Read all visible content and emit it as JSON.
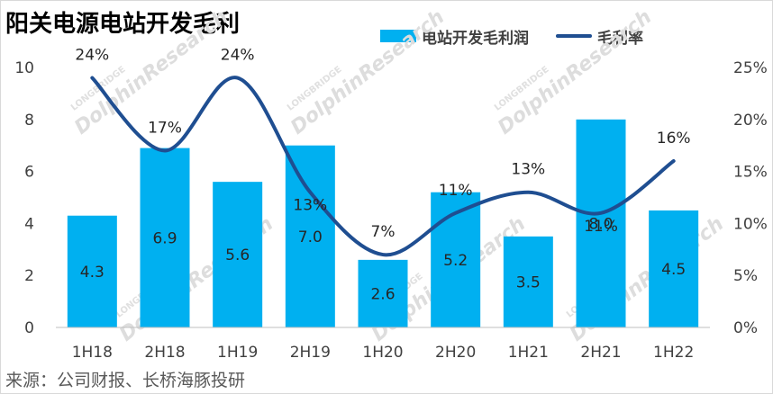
{
  "title": "阳关电源电站开发毛利",
  "source": "来源：公司财报、长桥海豚投研",
  "watermark": "DolphinResearch",
  "watermark_small": "LONGBRIDGE",
  "chart_data": {
    "type": "bar",
    "categories": [
      "1H18",
      "2H18",
      "1H19",
      "2H19",
      "1H20",
      "2H20",
      "1H21",
      "2H21",
      "1H22"
    ],
    "series": [
      {
        "name": "电站开发毛利润",
        "type": "bar",
        "axis": "left",
        "values": [
          4.3,
          6.9,
          5.6,
          7.0,
          2.6,
          5.2,
          3.5,
          8.0,
          4.5
        ],
        "labels": [
          "4.3",
          "6.9",
          "5.6",
          "7.0",
          "2.6",
          "5.2",
          "3.5",
          "8.0",
          "4.5"
        ],
        "color": "#00b0f0"
      },
      {
        "name": "毛利率",
        "type": "line",
        "axis": "right",
        "values": [
          24,
          17,
          24,
          13,
          7,
          11,
          13,
          11,
          16
        ],
        "labels": [
          "24%",
          "17%",
          "24%",
          "13%",
          "7%",
          "11%",
          "13%",
          "11%",
          "16%"
        ],
        "color": "#1f4e91"
      }
    ],
    "ylim_left": [
      0,
      10
    ],
    "yticks_left": [
      "0",
      "2",
      "4",
      "6",
      "8",
      "10"
    ],
    "ylim_right": [
      0,
      25
    ],
    "yticks_right": [
      "0%",
      "5%",
      "10%",
      "15%",
      "20%",
      "25%"
    ],
    "grid": false,
    "legend": "top-right"
  }
}
